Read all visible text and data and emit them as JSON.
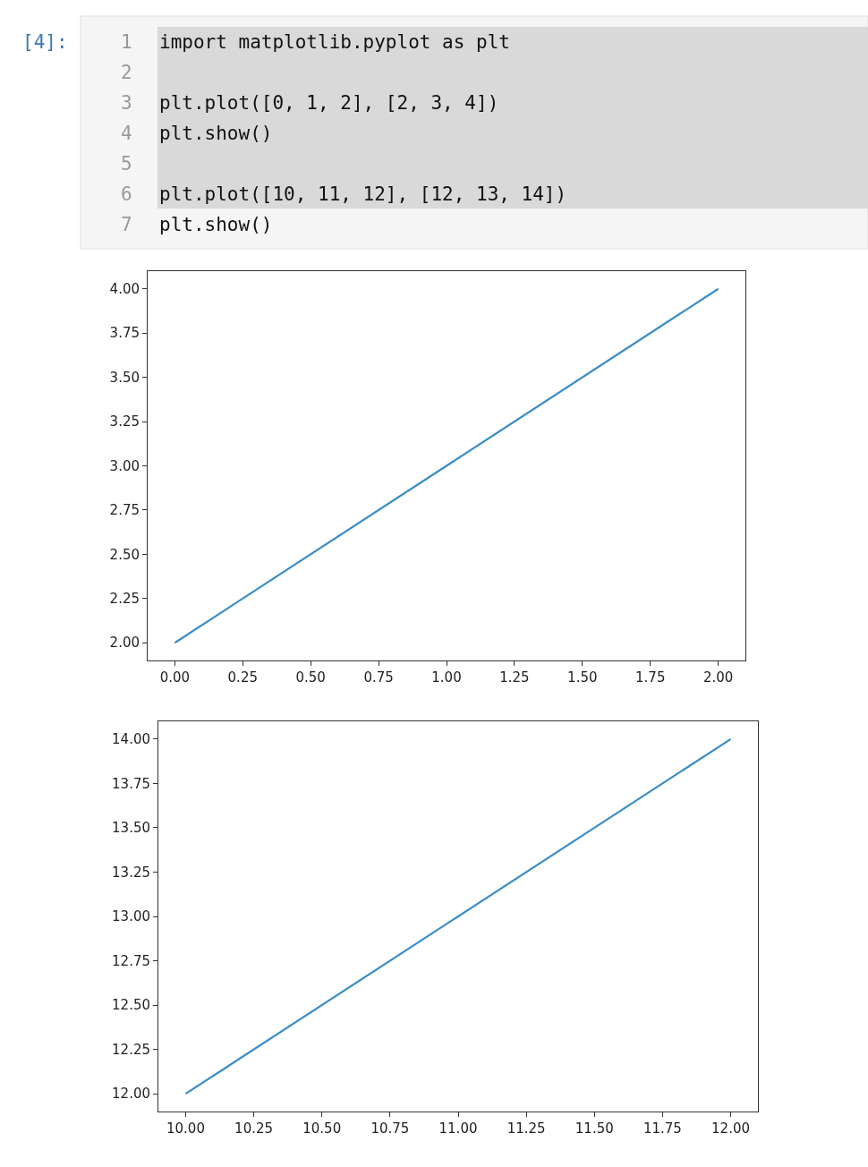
{
  "chart_data": [
    {
      "type": "line",
      "annotations": [
        "[4]:",
        "1 import matplotlib.pyplot as plt",
        "2",
        "3 plt.plot([0, 1, 2], [2, 3, 4])",
        "4 plt.show()",
        "5",
        "6 plt.plot([10, 11, 12], [12, 13, 14])",
        "7 plt.show()"
      ],
      "x": [
        0,
        1,
        2
      ],
      "series": [
        {
          "color": "#3a8dc6",
          "values": [
            2,
            3,
            4
          ]
        }
      ],
      "xlim": [
        -0.1,
        2.1
      ],
      "ylim": [
        1.9,
        4.1
      ],
      "xticks": [
        {
          "value": 0,
          "label": "0.00"
        },
        {
          "value": 0.25,
          "label": "0.25"
        },
        {
          "value": 0.5,
          "label": "0.50"
        },
        {
          "value": 0.75,
          "label": "0.75"
        },
        {
          "value": 1,
          "label": "1.00"
        },
        {
          "value": 1.25,
          "label": "1.25"
        },
        {
          "value": 1.5,
          "label": "1.50"
        },
        {
          "value": 1.75,
          "label": "1.75"
        },
        {
          "value": 2,
          "label": "2.00"
        }
      ],
      "yticks": [
        {
          "value": 2,
          "label": "2.00"
        },
        {
          "value": 2.25,
          "label": "2.25"
        },
        {
          "value": 2.5,
          "label": "2.50"
        },
        {
          "value": 2.75,
          "label": "2.75"
        },
        {
          "value": 3,
          "label": "3.00"
        },
        {
          "value": 3.25,
          "label": "3.25"
        },
        {
          "value": 3.5,
          "label": "3.50"
        },
        {
          "value": 3.75,
          "label": "3.75"
        },
        {
          "value": 4,
          "label": "4.00"
        }
      ]
    },
    {
      "type": "line",
      "x": [
        10,
        11,
        12
      ],
      "series": [
        {
          "color": "#3a8dc6",
          "values": [
            12,
            13,
            14
          ]
        }
      ],
      "xlim": [
        9.9,
        12.1
      ],
      "ylim": [
        11.9,
        14.1
      ],
      "xticks": [
        {
          "value": 10,
          "label": "10.00"
        },
        {
          "value": 10.25,
          "label": "10.25"
        },
        {
          "value": 10.5,
          "label": "10.50"
        },
        {
          "value": 10.75,
          "label": "10.75"
        },
        {
          "value": 11,
          "label": "11.00"
        },
        {
          "value": 11.25,
          "label": "11.25"
        },
        {
          "value": 11.5,
          "label": "11.50"
        },
        {
          "value": 11.75,
          "label": "11.75"
        },
        {
          "value": 12,
          "label": "12.00"
        }
      ],
      "yticks": [
        {
          "value": 12,
          "label": "12.00"
        },
        {
          "value": 12.25,
          "label": "12.25"
        },
        {
          "value": 12.5,
          "label": "12.50"
        },
        {
          "value": 12.75,
          "label": "12.75"
        },
        {
          "value": 13,
          "label": "13.00"
        },
        {
          "value": 13.25,
          "label": "13.25"
        },
        {
          "value": 13.5,
          "label": "13.50"
        },
        {
          "value": 13.75,
          "label": "13.75"
        },
        {
          "value": 14,
          "label": "14.00"
        }
      ]
    }
  ]
}
